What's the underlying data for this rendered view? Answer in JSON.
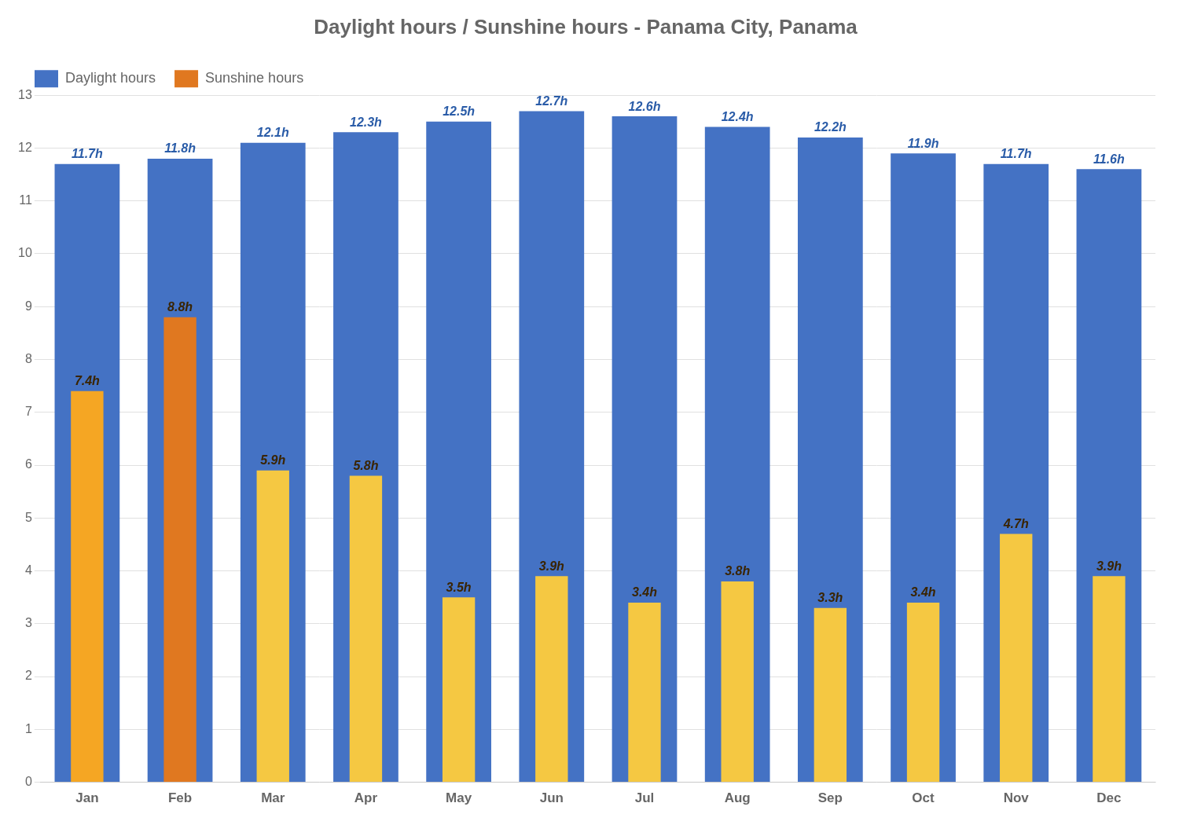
{
  "chart_data": {
    "type": "bar",
    "title": "Daylight hours / Sunshine hours - Panama City, Panama",
    "categories": [
      "Jan",
      "Feb",
      "Mar",
      "Apr",
      "May",
      "Jun",
      "Jul",
      "Aug",
      "Sep",
      "Oct",
      "Nov",
      "Dec"
    ],
    "series": [
      {
        "name": "Daylight hours",
        "color": "#4472c4",
        "values": [
          11.7,
          11.8,
          12.1,
          12.3,
          12.5,
          12.7,
          12.6,
          12.4,
          12.2,
          11.9,
          11.7,
          11.6
        ],
        "value_labels": [
          "11.7h",
          "11.8h",
          "12.1h",
          "12.3h",
          "12.5h",
          "12.7h",
          "12.6h",
          "12.4h",
          "12.2h",
          "11.9h",
          "11.7h",
          "11.6h"
        ]
      },
      {
        "name": "Sunshine hours",
        "color": "#e07820",
        "colors": [
          "#f5a623",
          "#e07820",
          "#f5c842",
          "#f5c842",
          "#f5c842",
          "#f5c842",
          "#f5c842",
          "#f5c842",
          "#f5c842",
          "#f5c842",
          "#f5c842",
          "#f5c842"
        ],
        "values": [
          7.4,
          8.8,
          5.9,
          5.8,
          3.5,
          3.9,
          3.4,
          3.8,
          3.3,
          3.4,
          4.7,
          3.9
        ],
        "value_labels": [
          "7.4h",
          "8.8h",
          "5.9h",
          "5.8h",
          "3.5h",
          "3.9h",
          "3.4h",
          "3.8h",
          "3.3h",
          "3.4h",
          "4.7h",
          "3.9h"
        ]
      }
    ],
    "ylim": [
      0,
      13
    ],
    "yticks": [
      0,
      1,
      2,
      3,
      4,
      5,
      6,
      7,
      8,
      9,
      10,
      11,
      12,
      13
    ],
    "grid": true,
    "legend": "upper left",
    "data_labels": true
  }
}
